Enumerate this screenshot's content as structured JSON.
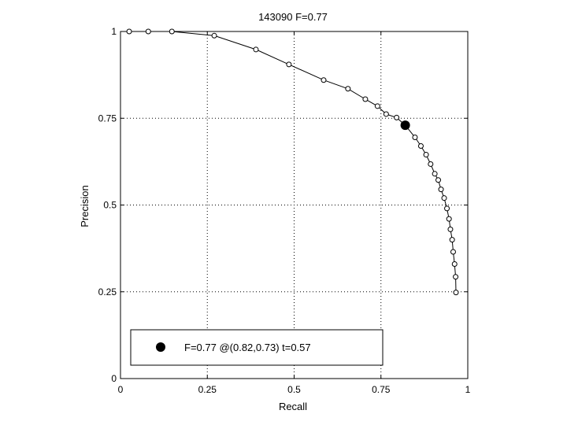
{
  "chart_data": {
    "type": "line",
    "title": "143090 F=0.77",
    "xlabel": "Recall",
    "ylabel": "Precision",
    "xlim": [
      0,
      1
    ],
    "ylim": [
      0,
      1
    ],
    "grid": true,
    "legend_position": "bottom-left",
    "x_ticks": [
      0,
      0.25,
      0.5,
      0.75,
      1
    ],
    "y_ticks": [
      0,
      0.25,
      0.5,
      0.75,
      1
    ],
    "x_tick_labels": [
      "0",
      "0.25",
      "0.5",
      "0.75",
      "1"
    ],
    "y_tick_labels": [
      "0",
      "0.25",
      "0.5",
      "0.75",
      "1"
    ],
    "series": [
      {
        "x": [
          0.025,
          0.08,
          0.148,
          0.27,
          0.39,
          0.485,
          0.585,
          0.655,
          0.705,
          0.74,
          0.765,
          0.795,
          0.82,
          0.848,
          0.865,
          0.88,
          0.893,
          0.905,
          0.915,
          0.923,
          0.932,
          0.94,
          0.946,
          0.95,
          0.955,
          0.958,
          0.962,
          0.965,
          0.966
        ],
        "y": [
          1.0,
          1.0,
          1.0,
          0.988,
          0.948,
          0.905,
          0.86,
          0.835,
          0.805,
          0.785,
          0.762,
          0.752,
          0.73,
          0.695,
          0.67,
          0.645,
          0.618,
          0.59,
          0.572,
          0.545,
          0.52,
          0.49,
          0.46,
          0.43,
          0.4,
          0.365,
          0.33,
          0.293,
          0.248
        ]
      }
    ],
    "best_point": {
      "x": 0.82,
      "y": 0.73
    },
    "legend_text": "F=0.77 @(0.82,0.73) t=0.57",
    "colors": {
      "line": "#000000",
      "grid": "#000000",
      "background": "#ffffff"
    }
  }
}
